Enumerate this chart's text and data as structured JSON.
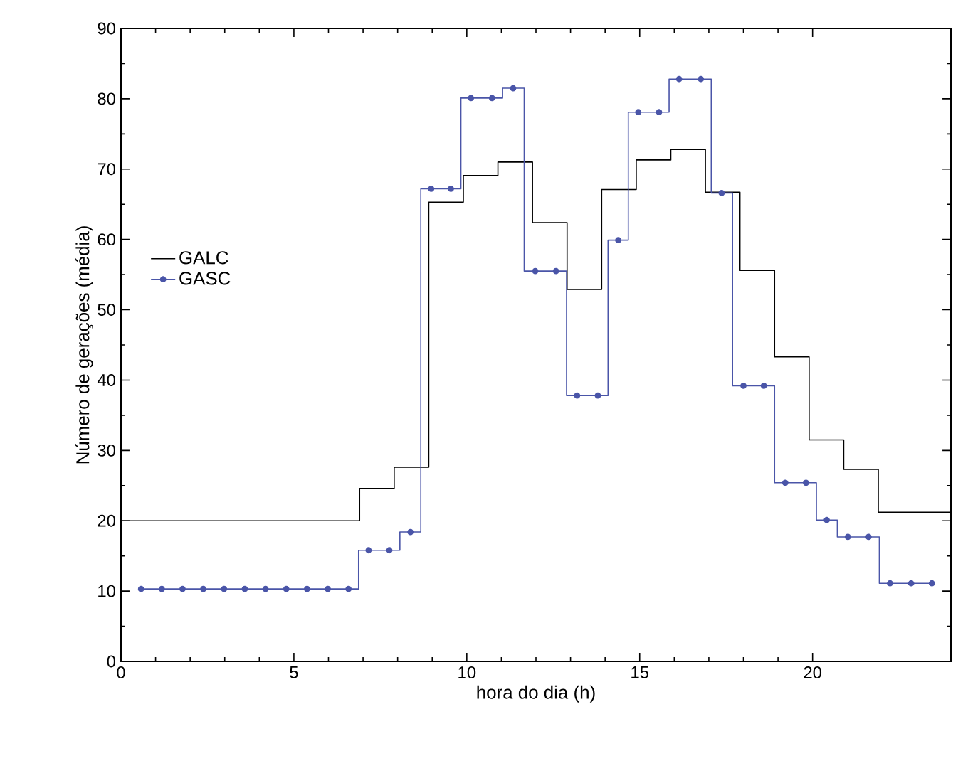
{
  "chart_data": {
    "type": "step",
    "xlabel": "hora do dia (h)",
    "ylabel": "Número de gerações (média)",
    "xlim": [
      0,
      24
    ],
    "ylim": [
      0,
      90
    ],
    "xticks": [
      0,
      5,
      10,
      15,
      20
    ],
    "yticks": [
      0,
      10,
      20,
      30,
      40,
      50,
      60,
      70,
      80,
      90
    ],
    "grid": false,
    "legend": "left",
    "series": [
      {
        "name": "GALC",
        "color": "#000000",
        "marker": "none",
        "x": [
          0,
          6.9,
          7.9,
          8.9,
          9.9,
          10.9,
          11.9,
          12.9,
          13.9,
          14.9,
          15.9,
          16.9,
          17.9,
          18.9,
          19.9,
          20.9,
          21.9,
          24
        ],
        "values": [
          20,
          24.6,
          27.6,
          65.3,
          69.1,
          71.0,
          62.4,
          52.9,
          67.1,
          71.3,
          72.8,
          66.7,
          55.6,
          43.3,
          31.5,
          27.3,
          21.2,
          21.2
        ]
      },
      {
        "name": "GASC",
        "color": "#4a55a8",
        "marker": "circle",
        "x": [
          0.58,
          1.18,
          1.78,
          2.38,
          2.98,
          3.58,
          4.18,
          4.78,
          5.38,
          5.98,
          6.58,
          7.16,
          7.76,
          8.37,
          8.97,
          9.54,
          10.12,
          10.73,
          11.34,
          11.98,
          12.58,
          13.19,
          13.79,
          14.38,
          14.96,
          15.56,
          16.14,
          16.77,
          17.37,
          18.0,
          18.59,
          19.21,
          19.81,
          20.41,
          21.02,
          21.62,
          22.24,
          22.85,
          23.45
        ],
        "values": [
          10.3,
          10.3,
          10.3,
          10.3,
          10.3,
          10.3,
          10.3,
          10.3,
          10.3,
          10.3,
          10.3,
          15.8,
          15.8,
          18.4,
          67.2,
          67.2,
          80.1,
          80.1,
          81.5,
          55.5,
          55.5,
          37.8,
          37.8,
          59.9,
          78.1,
          78.1,
          82.8,
          82.8,
          66.6,
          39.2,
          39.2,
          25.4,
          25.4,
          20.1,
          17.7,
          17.7,
          11.1,
          11.1,
          11.1
        ]
      }
    ]
  }
}
